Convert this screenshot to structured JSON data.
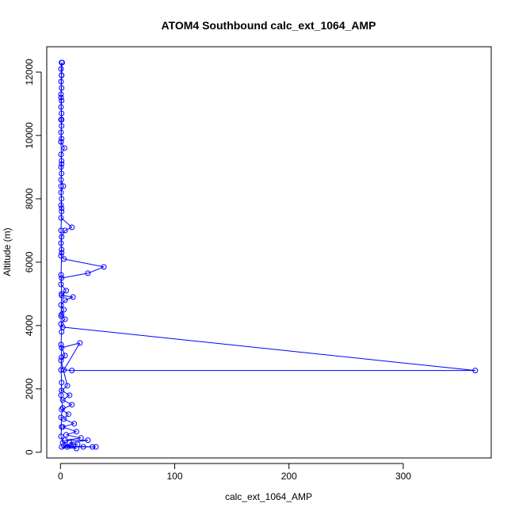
{
  "chart_data": {
    "type": "line",
    "title": "ATOM4 Southbound calc_ext_1064_AMP",
    "xlabel": "calc_ext_1064_AMP",
    "ylabel": "Altitude (m)",
    "xlim": [
      -12,
      377
    ],
    "ylim": [
      -180,
      12800
    ],
    "xticks": [
      0,
      100,
      200,
      300
    ],
    "yticks": [
      0,
      2000,
      4000,
      6000,
      8000,
      10000,
      12000
    ],
    "grid": false,
    "legend": "none",
    "marker": "open-circle",
    "color": "#0000ff",
    "series": [
      {
        "values": [
          [
            1,
            12300
          ],
          [
            0.5,
            12100
          ],
          [
            1,
            11900
          ],
          [
            0.5,
            11700
          ],
          [
            1,
            11500
          ],
          [
            0.5,
            11300
          ],
          [
            1,
            11100
          ],
          [
            0.5,
            10900
          ],
          [
            1,
            10700
          ],
          [
            0.5,
            10500
          ],
          [
            1,
            10300
          ],
          [
            0.5,
            10100
          ],
          [
            1,
            9900
          ],
          [
            0.5,
            9800
          ],
          [
            3.5,
            9600
          ],
          [
            0.5,
            9400
          ],
          [
            1,
            9200
          ],
          [
            0.5,
            9000
          ],
          [
            1,
            8800
          ],
          [
            0.5,
            8600
          ],
          [
            2.5,
            8400
          ],
          [
            0.5,
            8200
          ],
          [
            1,
            8000
          ],
          [
            0.5,
            7800
          ],
          [
            1,
            7600
          ],
          [
            0.5,
            7400
          ],
          [
            10,
            7100
          ],
          [
            4,
            7000
          ],
          [
            1,
            6800
          ],
          [
            0.5,
            6600
          ],
          [
            1,
            6400
          ],
          [
            0.5,
            6200
          ],
          [
            3,
            6100
          ],
          [
            38,
            5850
          ],
          [
            24,
            5650
          ],
          [
            1,
            5500
          ],
          [
            0.5,
            5300
          ],
          [
            5,
            5100
          ],
          [
            1,
            4950
          ],
          [
            11,
            4900
          ],
          [
            4,
            4800
          ],
          [
            0.5,
            4650
          ],
          [
            3,
            4500
          ],
          [
            1,
            4350
          ],
          [
            4,
            4200
          ],
          [
            0.5,
            4050
          ],
          [
            2,
            3950
          ],
          [
            363,
            2580
          ],
          [
            10,
            2580
          ],
          [
            3,
            2600
          ],
          [
            17,
            3450
          ],
          [
            1,
            3300
          ],
          [
            4,
            3050
          ],
          [
            0.5,
            2900
          ],
          [
            6,
            2100
          ],
          [
            1,
            1950
          ],
          [
            8,
            1800
          ],
          [
            2,
            1650
          ],
          [
            10,
            1500
          ],
          [
            1,
            1350
          ],
          [
            7,
            1200
          ],
          [
            3,
            1050
          ],
          [
            12,
            900
          ],
          [
            2,
            800
          ],
          [
            14,
            650
          ],
          [
            5,
            550
          ],
          [
            18,
            450
          ],
          [
            4,
            380
          ],
          [
            24,
            380
          ],
          [
            8,
            300
          ],
          [
            15,
            250
          ],
          [
            3,
            200
          ],
          [
            28,
            170
          ],
          [
            31,
            170
          ],
          [
            20,
            170
          ],
          [
            6,
            170
          ],
          [
            1,
            170
          ],
          [
            14,
            120
          ],
          [
            9,
            200
          ],
          [
            2,
            300
          ],
          [
            0.5,
            500
          ],
          [
            1,
            800
          ],
          [
            0.5,
            1100
          ],
          [
            2,
            1400
          ],
          [
            0.5,
            1800
          ],
          [
            1,
            2200
          ],
          [
            0.5,
            2600
          ],
          [
            1,
            3000
          ],
          [
            0.5,
            3400
          ],
          [
            1,
            3800
          ],
          [
            0.5,
            4300
          ],
          [
            1,
            5000
          ],
          [
            0.5,
            5600
          ],
          [
            1,
            6300
          ],
          [
            0.5,
            7000
          ],
          [
            1,
            7700
          ],
          [
            0.5,
            8400
          ],
          [
            1,
            9100
          ],
          [
            0.5,
            9800
          ],
          [
            1,
            10500
          ],
          [
            0.5,
            11200
          ],
          [
            1,
            11900
          ],
          [
            1.5,
            12300
          ]
        ]
      }
    ]
  }
}
